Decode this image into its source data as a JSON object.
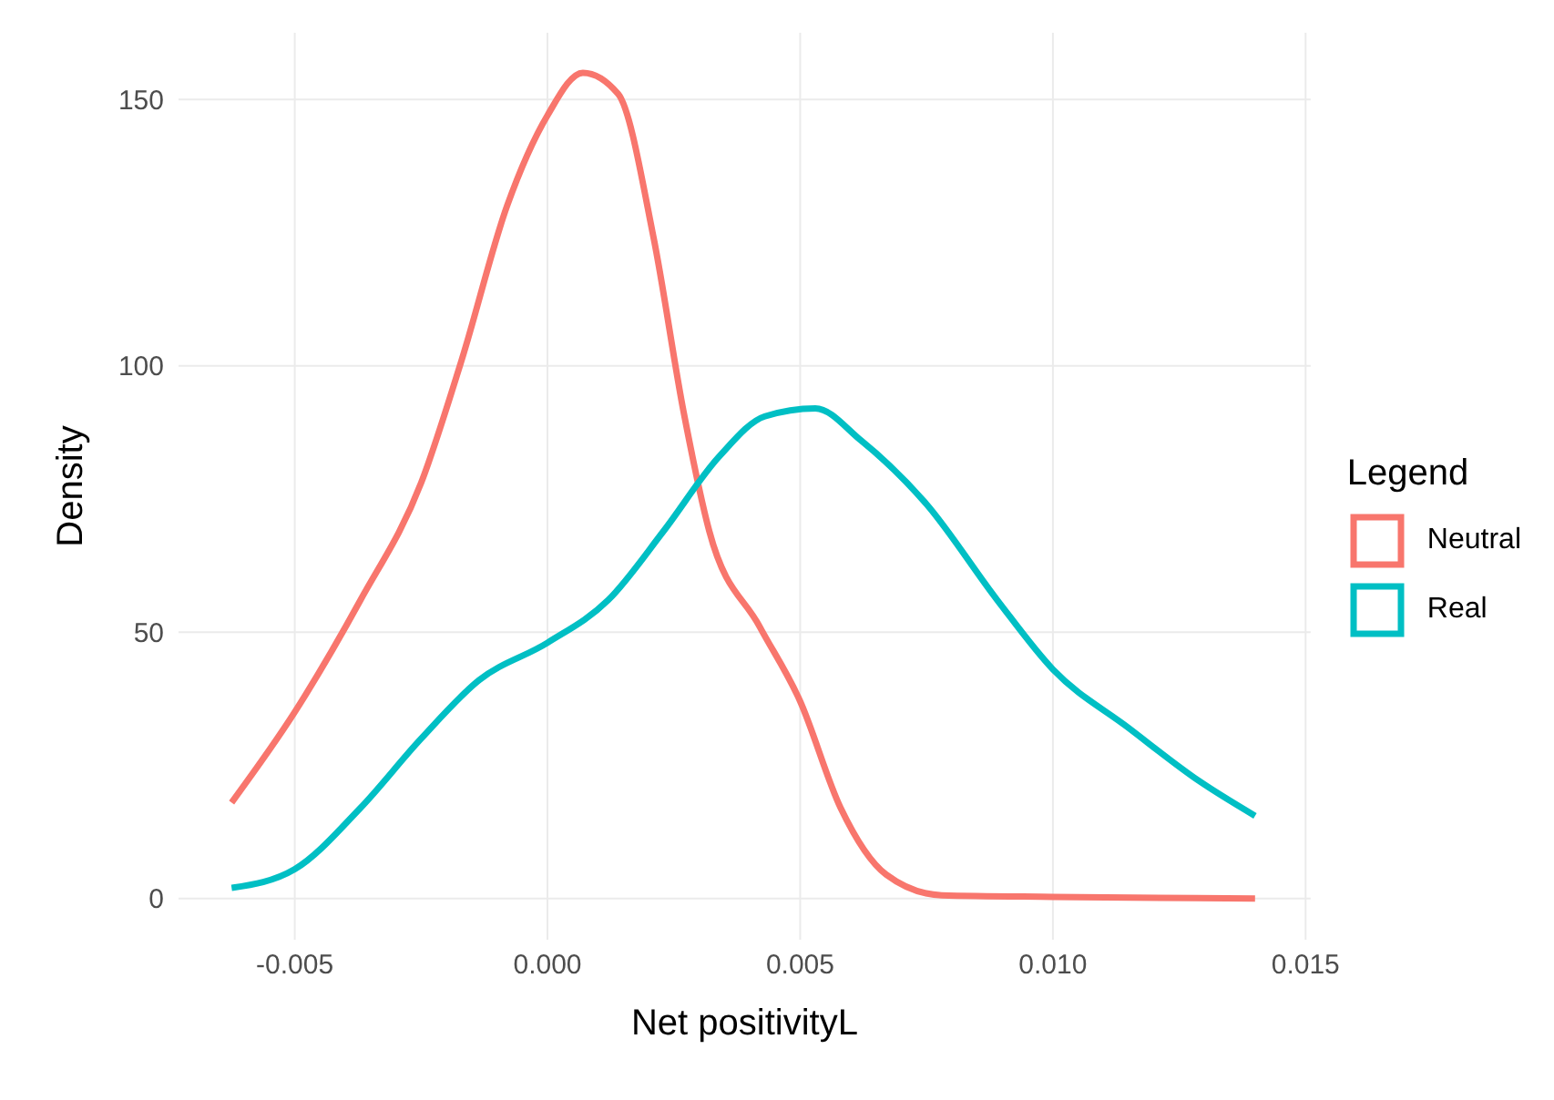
{
  "chart_data": {
    "type": "line",
    "xlabel": "Net positivityL",
    "ylabel": "Density",
    "legend_title": "Legend",
    "legend": "right",
    "grid": true,
    "marker": "none",
    "line_style": "solid",
    "xlim": [
      -0.0073,
      0.0151
    ],
    "xticks": [
      {
        "value": -0.005,
        "label": "-0.005"
      },
      {
        "value": 0,
        "label": "0.000"
      },
      {
        "value": 0.005,
        "label": "0.005"
      },
      {
        "value": 0.01,
        "label": "0.010"
      },
      {
        "value": 0.015,
        "label": "0.015"
      }
    ],
    "ylim": [
      -7.75,
      162.5
    ],
    "yticks": [
      0,
      50,
      100,
      150
    ],
    "series": [
      {
        "name": "Neutral",
        "color": "#f8766d",
        "x": [
          -0.00625,
          -0.005,
          -0.0037,
          -0.0025,
          -0.0017,
          -0.0008,
          0,
          0.0007,
          0.0014,
          0.0021,
          0.0027,
          0.0032,
          0.0042,
          0.005,
          0.0058,
          0.0067,
          0.0078,
          0.01,
          0.014
        ],
        "values": [
          18,
          35,
          56,
          78,
          101,
          130,
          147,
          155,
          151,
          124,
          91,
          69,
          51,
          37,
          17,
          4.5,
          0.6,
          0.3,
          0
        ]
      },
      {
        "name": "Real",
        "color": "#00bfc4",
        "x": [
          -0.00625,
          -0.005,
          -0.0037,
          -0.0025,
          -0.00135,
          0,
          0.0012,
          0.0023,
          0.0034,
          0.0043,
          0.0053,
          0.0062,
          0.0075,
          0.0089,
          0.01,
          0.0115,
          0.0129,
          0.014
        ],
        "values": [
          2,
          5.5,
          17,
          30,
          41,
          48,
          56,
          69,
          83,
          90.5,
          92,
          86,
          74,
          56,
          43,
          32,
          22,
          15.5
        ]
      }
    ]
  }
}
